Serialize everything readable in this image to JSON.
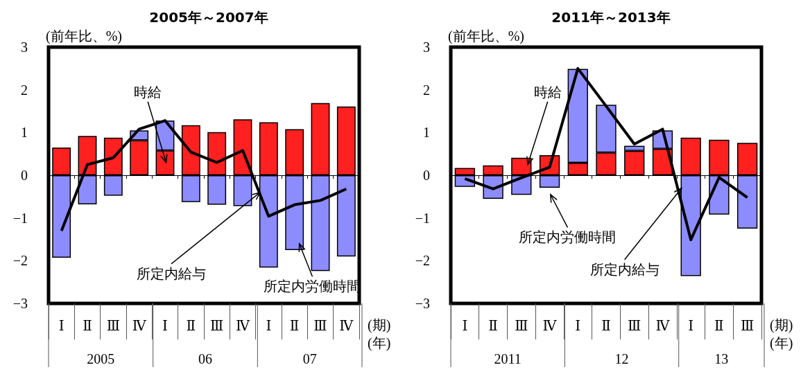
{
  "chart_data": [
    {
      "type": "bar",
      "stacked": true,
      "title": "2005年～2007年",
      "ylabel": "(前年比、%)",
      "xlabel": "(期)\n(年)",
      "categories": [
        "Ⅰ",
        "Ⅱ",
        "Ⅲ",
        "Ⅳ",
        "Ⅰ",
        "Ⅱ",
        "Ⅲ",
        "Ⅳ",
        "Ⅰ",
        "Ⅱ",
        "Ⅲ",
        "Ⅳ"
      ],
      "ylim": [
        -3,
        3
      ],
      "yticks": [
        -3,
        -2,
        -1,
        0,
        1,
        2,
        3
      ],
      "marker": "none",
      "annotations": [
        "2005",
        "06",
        "07"
      ],
      "series": [
        {
          "name": "時給",
          "color": "#ff2020",
          "values": [
            0.65,
            0.92,
            0.88,
            0.82,
            0.58,
            1.17,
            1.01,
            1.31,
            1.24,
            1.08,
            1.69,
            1.61
          ]
        },
        {
          "name": "所定内労働時間",
          "color": "#8c8cff",
          "values": [
            -1.93,
            -0.68,
            -0.48,
            0.23,
            0.7,
            -0.63,
            -0.69,
            -0.72,
            -2.16,
            -1.75,
            -2.24,
            -1.9
          ]
        },
        {
          "name": "所定内給与",
          "type": "line",
          "color": "#000000",
          "values": [
            -1.3,
            0.25,
            0.41,
            1.08,
            1.28,
            0.54,
            0.3,
            0.58,
            -0.96,
            -0.69,
            -0.59,
            -0.32
          ]
        }
      ]
    },
    {
      "type": "bar",
      "stacked": true,
      "title": "2011年～2013年",
      "ylabel": "(前年比、%)",
      "xlabel": "(期)\n(年)",
      "categories": [
        "Ⅰ",
        "Ⅱ",
        "Ⅲ",
        "Ⅳ",
        "Ⅰ",
        "Ⅱ",
        "Ⅲ",
        "Ⅳ",
        "Ⅰ",
        "Ⅱ",
        "Ⅲ"
      ],
      "ylim": [
        -3,
        3
      ],
      "yticks": [
        -3,
        -2,
        -1,
        0,
        1,
        2,
        3
      ],
      "marker": "none",
      "annotations": [
        "2011",
        "12",
        "13"
      ],
      "series": [
        {
          "name": "時給",
          "color": "#ff2020",
          "values": [
            0.17,
            0.23,
            0.41,
            0.47,
            0.29,
            0.53,
            0.57,
            0.62,
            0.88,
            0.83,
            0.76
          ]
        },
        {
          "name": "所定内労働時間",
          "color": "#8c8cff",
          "values": [
            -0.27,
            -0.55,
            -0.46,
            -0.29,
            2.2,
            1.12,
            0.12,
            0.43,
            -2.36,
            -0.92,
            -1.25
          ]
        },
        {
          "name": "所定内給与",
          "type": "line",
          "color": "#000000",
          "values": [
            -0.08,
            -0.32,
            -0.06,
            0.19,
            2.5,
            1.62,
            0.73,
            1.08,
            -1.51,
            -0.05,
            -0.52
          ]
        }
      ]
    }
  ]
}
